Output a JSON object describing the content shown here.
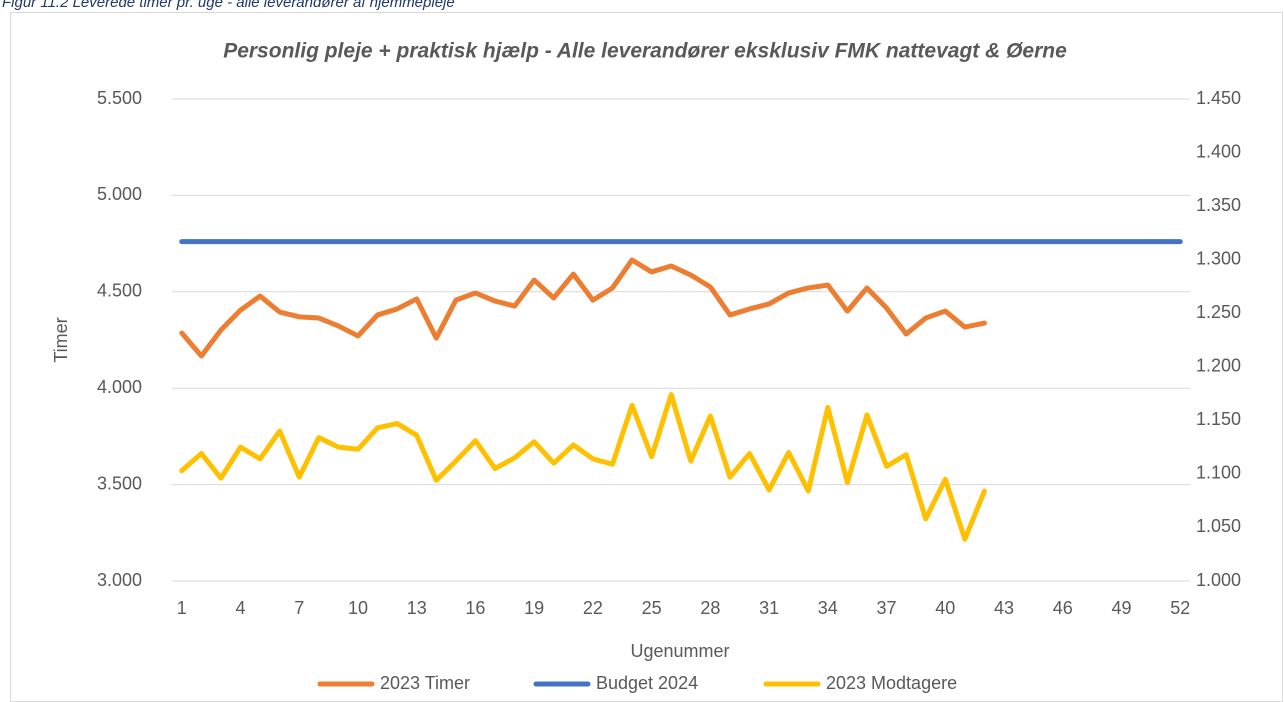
{
  "caption": "Figur 11.2 Leverede timer pr. uge - alle leverandører af hjemmepleje",
  "chart_data": {
    "type": "line",
    "title": "Personlig pleje + praktisk hjælp - Alle leverandører eksklusiv FMK nattevagt & Øerne",
    "xlabel": "Ugenummer",
    "ylabel": "Timer",
    "x": [
      1,
      2,
      3,
      4,
      5,
      6,
      7,
      8,
      9,
      10,
      11,
      12,
      13,
      14,
      15,
      16,
      17,
      18,
      19,
      20,
      21,
      22,
      23,
      24,
      25,
      26,
      27,
      28,
      29,
      30,
      31,
      32,
      33,
      34,
      35,
      36,
      37,
      38,
      39,
      40,
      41,
      42,
      43,
      44,
      45,
      46,
      47,
      48,
      49,
      50,
      51,
      52
    ],
    "xlim": [
      0.5,
      52.5
    ],
    "xticks": [
      1,
      4,
      7,
      10,
      13,
      16,
      19,
      22,
      25,
      28,
      31,
      34,
      37,
      40,
      43,
      46,
      49,
      52
    ],
    "ylim": [
      3000,
      5500
    ],
    "yticks": [
      {
        "value": 3000,
        "label": "3.000"
      },
      {
        "value": 3500,
        "label": "3.500"
      },
      {
        "value": 4000,
        "label": "4.000"
      },
      {
        "value": 4500,
        "label": "4.500"
      },
      {
        "value": 5000,
        "label": "5.000"
      },
      {
        "value": 5500,
        "label": "5.500"
      }
    ],
    "y2lim": [
      1000,
      1450
    ],
    "y2ticks": [
      {
        "value": 1000,
        "label": "1.000"
      },
      {
        "value": 1050,
        "label": "1.050"
      },
      {
        "value": 1100,
        "label": "1.100"
      },
      {
        "value": 1150,
        "label": "1.150"
      },
      {
        "value": 1200,
        "label": "1.200"
      },
      {
        "value": 1250,
        "label": "1.250"
      },
      {
        "value": 1300,
        "label": "1.300"
      },
      {
        "value": 1350,
        "label": "1.350"
      },
      {
        "value": 1400,
        "label": "1.400"
      },
      {
        "value": 1450,
        "label": "1.450"
      }
    ],
    "grid": true,
    "legend": "bottom",
    "series": [
      {
        "name": "2023 Timer",
        "color": "#ed7d31",
        "values": [
          4286,
          4167,
          4302,
          4405,
          4478,
          4395,
          4370,
          4364,
          4323,
          4271,
          4380,
          4411,
          4463,
          4260,
          4457,
          4494,
          4452,
          4426,
          4561,
          4468,
          4592,
          4457,
          4520,
          4665,
          4603,
          4634,
          4587,
          4525,
          4380,
          4411,
          4437,
          4494,
          4520,
          4535,
          4400,
          4520,
          4416,
          4281,
          4364,
          4400,
          4317,
          4338,
          null,
          null,
          null,
          null,
          null,
          null,
          null,
          null,
          null,
          null
        ]
      },
      {
        "name": "Budget 2024",
        "color": "#4472c4",
        "values": [
          4760,
          4760,
          4760,
          4760,
          4760,
          4760,
          4760,
          4760,
          4760,
          4760,
          4760,
          4760,
          4760,
          4760,
          4760,
          4760,
          4760,
          4760,
          4760,
          4760,
          4760,
          4760,
          4760,
          4760,
          4760,
          4760,
          4760,
          4760,
          4760,
          4760,
          4760,
          4760,
          4760,
          4760,
          4760,
          4760,
          4760,
          4760,
          4760,
          4760,
          4760,
          4760,
          4760,
          4760,
          4760,
          4760,
          4760,
          4760,
          4760,
          4760,
          4760,
          4760
        ]
      },
      {
        "name": "2023 Modtagere",
        "color": "#ffc000",
        "axis": "y2",
        "values": [
          1103,
          1119,
          1096,
          1125,
          1114,
          1140,
          1097,
          1134,
          1125,
          1123,
          1143,
          1147,
          1136,
          1094,
          1112,
          1131,
          1105,
          1115,
          1130,
          1110,
          1127,
          1114,
          1109,
          1164,
          1116,
          1174,
          1112,
          1154,
          1097,
          1119,
          1085,
          1120,
          1084,
          1162,
          1092,
          1155,
          1107,
          1118,
          1058,
          1095,
          1039,
          1084,
          null,
          null,
          null,
          null,
          null,
          null,
          null,
          null,
          null,
          null
        ]
      }
    ]
  }
}
